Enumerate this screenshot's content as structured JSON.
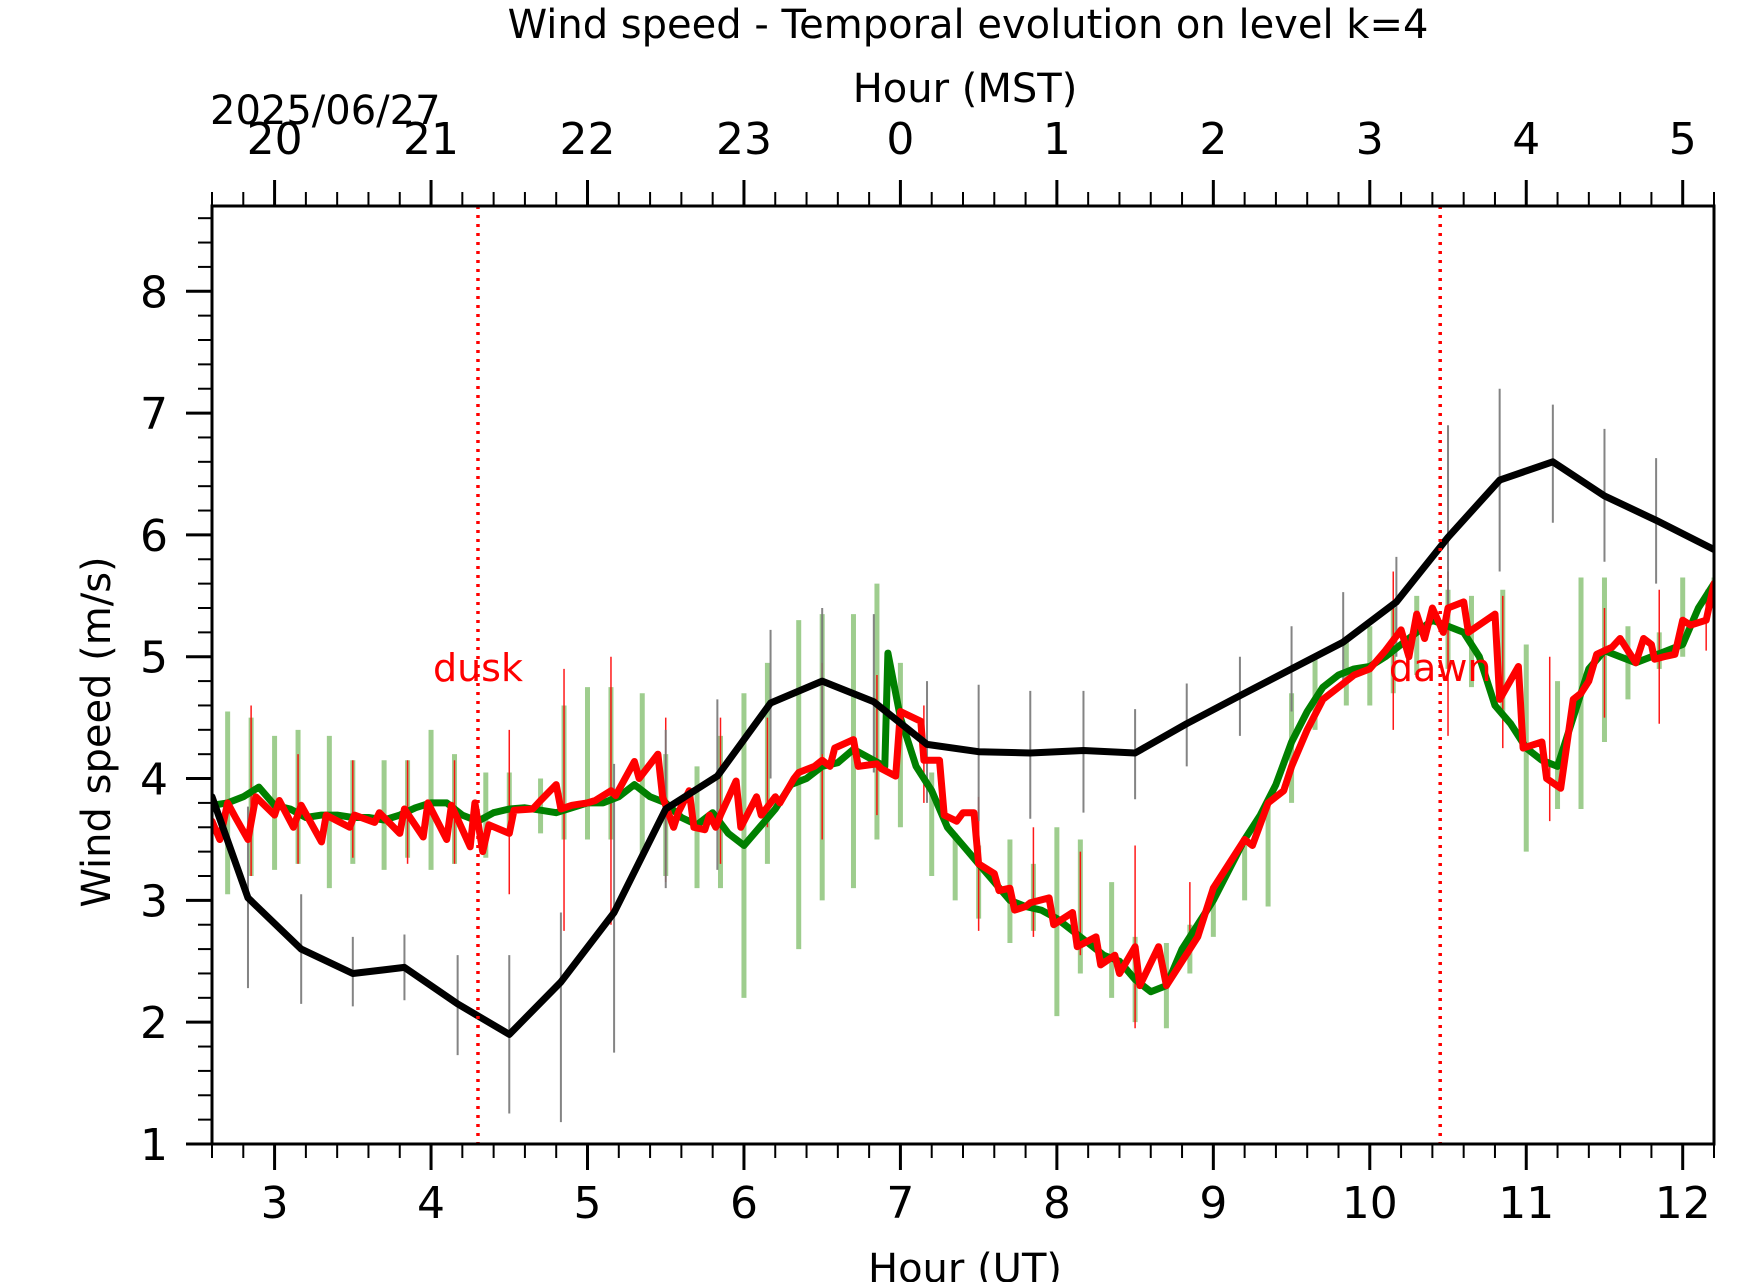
{
  "chart_data": {
    "type": "line",
    "title": "Wind speed - Temporal evolution on level k=4",
    "xlabel": "Hour (UT)",
    "x2label": "Hour (MST)",
    "ylabel": "Wind speed (m/s)",
    "date_label": "2025/06/27",
    "xlim": [
      2.6,
      12.2
    ],
    "ylim": [
      1,
      8.7
    ],
    "x_ticks": [
      3,
      4,
      5,
      6,
      7,
      8,
      9,
      10,
      11,
      12
    ],
    "x_tick_labels": [
      "3",
      "4",
      "5",
      "6",
      "7",
      "8",
      "9",
      "10",
      "11",
      "12"
    ],
    "x2_ticks": [
      3,
      4,
      5,
      6,
      7,
      8,
      9,
      10,
      11,
      12
    ],
    "x2_tick_labels": [
      "20",
      "21",
      "22",
      "23",
      "0",
      "1",
      "2",
      "3",
      "4",
      "5"
    ],
    "y_ticks": [
      1,
      2,
      3,
      4,
      5,
      6,
      7,
      8
    ],
    "y_tick_labels": [
      "1",
      "2",
      "3",
      "4",
      "5",
      "6",
      "7",
      "8"
    ],
    "grid": false,
    "legend": "none",
    "annotations": [
      {
        "text": "dusk",
        "x": 4.3,
        "y": 4.8,
        "color": "#ff0000"
      },
      {
        "text": "dawn",
        "x": 10.45,
        "y": 4.8,
        "color": "#ff0000"
      }
    ],
    "vlines": [
      {
        "x": 4.3,
        "color": "#ff0000",
        "style": "dotted"
      },
      {
        "x": 10.45,
        "color": "#ff0000",
        "style": "dotted"
      }
    ],
    "series": [
      {
        "color": "#008000",
        "error_color": "#8dc47a",
        "x": [
          2.6,
          2.7,
          2.8,
          2.9,
          3.0,
          3.1,
          3.2,
          3.3,
          3.4,
          3.5,
          3.6,
          3.7,
          3.8,
          3.9,
          4.0,
          4.1,
          4.2,
          4.3,
          4.4,
          4.5,
          4.6,
          4.7,
          4.8,
          4.9,
          5.0,
          5.1,
          5.2,
          5.3,
          5.4,
          5.5,
          5.6,
          5.7,
          5.8,
          5.9,
          6.0,
          6.1,
          6.2,
          6.3,
          6.4,
          6.5,
          6.6,
          6.7,
          6.8,
          6.9,
          6.92,
          7.0,
          7.1,
          7.2,
          7.3,
          7.4,
          7.5,
          7.6,
          7.7,
          7.8,
          7.9,
          8.0,
          8.1,
          8.2,
          8.3,
          8.4,
          8.5,
          8.6,
          8.7,
          8.8,
          8.9,
          9.0,
          9.1,
          9.2,
          9.3,
          9.4,
          9.5,
          9.6,
          9.7,
          9.8,
          9.9,
          10.0,
          10.1,
          10.2,
          10.3,
          10.4,
          10.5,
          10.6,
          10.7,
          10.8,
          10.9,
          11.0,
          11.1,
          11.2,
          11.3,
          11.4,
          11.5,
          11.6,
          11.7,
          11.8,
          11.9,
          12.0,
          12.1,
          12.2
        ],
        "y": [
          3.78,
          3.8,
          3.85,
          3.93,
          3.78,
          3.75,
          3.68,
          3.7,
          3.7,
          3.68,
          3.68,
          3.66,
          3.7,
          3.76,
          3.8,
          3.8,
          3.7,
          3.65,
          3.72,
          3.75,
          3.76,
          3.74,
          3.72,
          3.76,
          3.8,
          3.8,
          3.85,
          3.95,
          3.85,
          3.8,
          3.68,
          3.62,
          3.72,
          3.55,
          3.45,
          3.6,
          3.75,
          3.95,
          4.0,
          4.1,
          4.13,
          4.24,
          4.17,
          4.1,
          5.03,
          4.5,
          4.1,
          3.9,
          3.6,
          3.45,
          3.3,
          3.15,
          3.0,
          2.95,
          2.92,
          2.85,
          2.75,
          2.65,
          2.55,
          2.5,
          2.35,
          2.25,
          2.3,
          2.6,
          2.8,
          3.0,
          3.25,
          3.5,
          3.7,
          3.95,
          4.3,
          4.55,
          4.75,
          4.85,
          4.9,
          4.92,
          5.0,
          5.1,
          5.2,
          5.3,
          5.25,
          5.2,
          5.0,
          4.6,
          4.45,
          4.25,
          4.15,
          4.1,
          4.5,
          4.9,
          5.05,
          5.0,
          4.95,
          5.0,
          5.05,
          5.1,
          5.4,
          5.6
        ],
        "error_x": [
          2.7,
          2.85,
          3.0,
          3.15,
          3.35,
          3.5,
          3.7,
          3.85,
          4.0,
          4.15,
          4.35,
          4.5,
          4.7,
          4.85,
          5.0,
          5.15,
          5.35,
          5.5,
          5.7,
          5.85,
          6.0,
          6.15,
          6.35,
          6.5,
          6.7,
          6.85,
          7.0,
          7.2,
          7.35,
          7.5,
          7.7,
          7.85,
          8.0,
          8.15,
          8.35,
          8.5,
          8.7,
          8.85,
          9.0,
          9.2,
          9.35,
          9.5,
          9.65,
          9.85,
          10.0,
          10.15,
          10.3,
          10.5,
          10.65,
          10.85,
          11.0,
          11.2,
          11.35,
          11.5,
          11.65,
          11.85,
          12.0,
          12.2
        ],
        "error_lo": [
          3.05,
          3.2,
          3.25,
          3.3,
          3.1,
          3.3,
          3.25,
          3.35,
          3.25,
          3.3,
          3.35,
          3.55,
          3.55,
          3.5,
          3.5,
          3.5,
          3.35,
          3.2,
          3.1,
          3.1,
          2.2,
          3.3,
          2.6,
          3.0,
          3.1,
          3.5,
          3.6,
          3.2,
          3.0,
          2.85,
          2.65,
          2.75,
          2.05,
          2.4,
          2.2,
          2.0,
          1.95,
          2.4,
          2.7,
          3.0,
          2.95,
          3.8,
          4.4,
          4.6,
          4.6,
          4.7,
          4.85,
          4.9,
          4.75,
          4.55,
          3.4,
          3.75,
          3.75,
          4.3,
          4.65,
          4.9,
          5.0,
          5.4
        ],
        "error_hi": [
          4.55,
          4.5,
          4.35,
          4.4,
          4.35,
          4.15,
          4.15,
          4.15,
          4.4,
          4.2,
          4.05,
          4.05,
          4.0,
          4.6,
          4.75,
          4.75,
          4.7,
          4.2,
          4.1,
          4.35,
          4.7,
          4.95,
          5.3,
          5.35,
          5.35,
          5.6,
          4.95,
          4.05,
          3.55,
          3.45,
          3.5,
          3.3,
          3.6,
          3.5,
          3.15,
          2.7,
          2.65,
          2.8,
          3.1,
          3.45,
          3.8,
          4.7,
          5.0,
          5.15,
          5.25,
          5.4,
          5.5,
          5.55,
          5.5,
          5.55,
          5.1,
          4.8,
          5.65,
          5.65,
          5.25,
          5.2,
          5.65,
          5.65
        ]
      },
      {
        "color": "#ff0000",
        "error_color": "#ff0000",
        "x": [
          2.6,
          2.65,
          2.7,
          2.75,
          2.83,
          2.88,
          3.0,
          3.03,
          3.12,
          3.17,
          3.3,
          3.33,
          3.48,
          3.51,
          3.64,
          3.67,
          3.8,
          3.83,
          3.95,
          3.98,
          4.1,
          4.13,
          4.25,
          4.28,
          4.33,
          4.37,
          4.5,
          4.53,
          4.65,
          4.7,
          4.8,
          4.83,
          4.9,
          4.95,
          5.0,
          5.05,
          5.15,
          5.18,
          5.3,
          5.33,
          5.45,
          5.48,
          5.55,
          5.58,
          5.65,
          5.68,
          5.75,
          5.78,
          5.82,
          5.85,
          5.95,
          5.98,
          6.08,
          6.11,
          6.2,
          6.23,
          6.32,
          6.35,
          6.45,
          6.5,
          6.55,
          6.58,
          6.7,
          6.73,
          6.85,
          6.88,
          6.97,
          7.0,
          7.13,
          7.15,
          7.25,
          7.28,
          7.36,
          7.4,
          7.47,
          7.5,
          7.6,
          7.63,
          7.7,
          7.73,
          7.8,
          7.83,
          7.95,
          7.98,
          8.1,
          8.13,
          8.25,
          8.28,
          8.37,
          8.4,
          8.5,
          8.53,
          8.65,
          8.7,
          8.8,
          8.9,
          9.0,
          9.1,
          9.2,
          9.25,
          9.35,
          9.45,
          9.5,
          9.6,
          9.7,
          9.8,
          9.9,
          10.0,
          10.1,
          10.2,
          10.25,
          10.3,
          10.35,
          10.4,
          10.47,
          10.5,
          10.6,
          10.63,
          10.8,
          10.83,
          10.95,
          10.98,
          11.1,
          11.13,
          11.22,
          11.3,
          11.35,
          11.4,
          11.45,
          11.55,
          11.6,
          11.7,
          11.75,
          11.8,
          11.82,
          11.88,
          11.95,
          12.0,
          12.05,
          12.15,
          12.2
        ],
        "y": [
          3.65,
          3.5,
          3.8,
          3.68,
          3.5,
          3.85,
          3.7,
          3.82,
          3.6,
          3.78,
          3.48,
          3.7,
          3.6,
          3.7,
          3.64,
          3.72,
          3.55,
          3.75,
          3.52,
          3.8,
          3.5,
          3.78,
          3.44,
          3.8,
          3.4,
          3.62,
          3.55,
          3.74,
          3.75,
          3.82,
          3.95,
          3.75,
          3.78,
          3.79,
          3.8,
          3.82,
          3.9,
          3.86,
          4.14,
          4.0,
          4.2,
          3.85,
          3.6,
          3.72,
          3.9,
          3.6,
          3.58,
          3.7,
          3.6,
          3.7,
          3.98,
          3.6,
          3.85,
          3.7,
          3.85,
          3.8,
          4.0,
          4.05,
          4.1,
          4.15,
          4.1,
          4.25,
          4.32,
          4.1,
          4.12,
          4.08,
          4.02,
          4.55,
          4.47,
          4.15,
          4.15,
          3.7,
          3.65,
          3.72,
          3.72,
          3.3,
          3.22,
          3.08,
          3.1,
          2.92,
          2.95,
          2.98,
          3.02,
          2.8,
          2.9,
          2.62,
          2.7,
          2.47,
          2.55,
          2.4,
          2.62,
          2.3,
          2.62,
          2.3,
          2.5,
          2.7,
          3.1,
          3.3,
          3.5,
          3.45,
          3.8,
          3.9,
          4.1,
          4.4,
          4.65,
          4.75,
          4.85,
          4.9,
          5.05,
          5.22,
          5.0,
          5.35,
          5.15,
          5.4,
          5.2,
          5.4,
          5.45,
          5.2,
          5.35,
          4.65,
          4.92,
          4.25,
          4.3,
          4.0,
          3.92,
          4.65,
          4.7,
          4.8,
          5.02,
          5.08,
          5.15,
          4.95,
          5.15,
          5.1,
          4.98,
          5.0,
          5.02,
          5.3,
          5.26,
          5.3,
          5.6
        ],
        "error_x": [
          2.85,
          3.15,
          3.5,
          3.85,
          4.15,
          4.5,
          4.85,
          5.15,
          5.5,
          5.85,
          6.15,
          6.5,
          6.85,
          7.15,
          7.5,
          7.85,
          8.15,
          8.5,
          8.85,
          10.15,
          10.5,
          10.85,
          11.15,
          11.5,
          11.85,
          12.15
        ],
        "error_lo": [
          3.2,
          3.3,
          3.35,
          3.3,
          3.3,
          3.05,
          2.75,
          2.8,
          3.15,
          3.3,
          3.6,
          3.5,
          3.7,
          3.8,
          2.75,
          2.7,
          2.55,
          1.95,
          2.55,
          4.4,
          4.35,
          4.25,
          3.65,
          4.5,
          4.45,
          5.05
        ],
        "error_hi": [
          4.6,
          4.2,
          4.15,
          4.15,
          4.15,
          4.4,
          4.9,
          5.0,
          4.5,
          4.5,
          4.5,
          4.95,
          4.85,
          4.6,
          3.85,
          3.6,
          3.4,
          3.45,
          3.15,
          5.7,
          5.7,
          5.5,
          5.0,
          5.4,
          5.55,
          5.55
        ]
      },
      {
        "color": "#000000",
        "error_color": "#777777",
        "x": [
          2.6,
          2.83,
          3.17,
          3.5,
          3.83,
          4.17,
          4.5,
          4.83,
          5.17,
          5.5,
          5.83,
          6.17,
          6.5,
          6.83,
          7.17,
          7.5,
          7.83,
          8.17,
          8.5,
          8.83,
          9.17,
          9.5,
          9.83,
          10.17,
          10.5,
          10.83,
          11.17,
          11.5,
          11.83,
          12.2
        ],
        "y": [
          3.85,
          3.02,
          2.6,
          2.4,
          2.45,
          2.15,
          1.9,
          2.33,
          2.9,
          3.75,
          4.02,
          4.62,
          4.8,
          4.63,
          4.28,
          4.22,
          4.21,
          4.23,
          4.21,
          4.45,
          4.68,
          4.9,
          5.12,
          5.45,
          5.98,
          6.45,
          6.6,
          6.32,
          6.12,
          5.88
        ],
        "error_x": [
          2.83,
          3.17,
          3.5,
          3.83,
          4.17,
          4.5,
          4.83,
          5.17,
          5.5,
          5.83,
          6.17,
          6.5,
          6.83,
          7.17,
          7.5,
          7.83,
          8.17,
          8.5,
          8.83,
          9.17,
          9.5,
          9.83,
          10.17,
          10.5,
          10.83,
          11.17,
          11.5,
          11.83
        ],
        "error_lo": [
          2.28,
          2.15,
          2.13,
          2.18,
          1.73,
          1.25,
          1.18,
          1.75,
          3.1,
          3.25,
          4.0,
          4.2,
          4.05,
          3.8,
          3.65,
          3.67,
          3.72,
          3.83,
          4.1,
          4.35,
          4.55,
          4.75,
          5.0,
          5.3,
          5.7,
          6.1,
          5.78,
          5.6
        ],
        "error_hi": [
          3.77,
          3.05,
          2.7,
          2.72,
          2.55,
          2.55,
          2.9,
          4.12,
          4.4,
          4.65,
          5.22,
          5.4,
          5.35,
          4.8,
          4.77,
          4.72,
          4.72,
          4.57,
          4.78,
          5.0,
          5.25,
          5.53,
          5.82,
          6.9,
          7.2,
          7.07,
          6.87,
          6.63
        ]
      }
    ]
  }
}
